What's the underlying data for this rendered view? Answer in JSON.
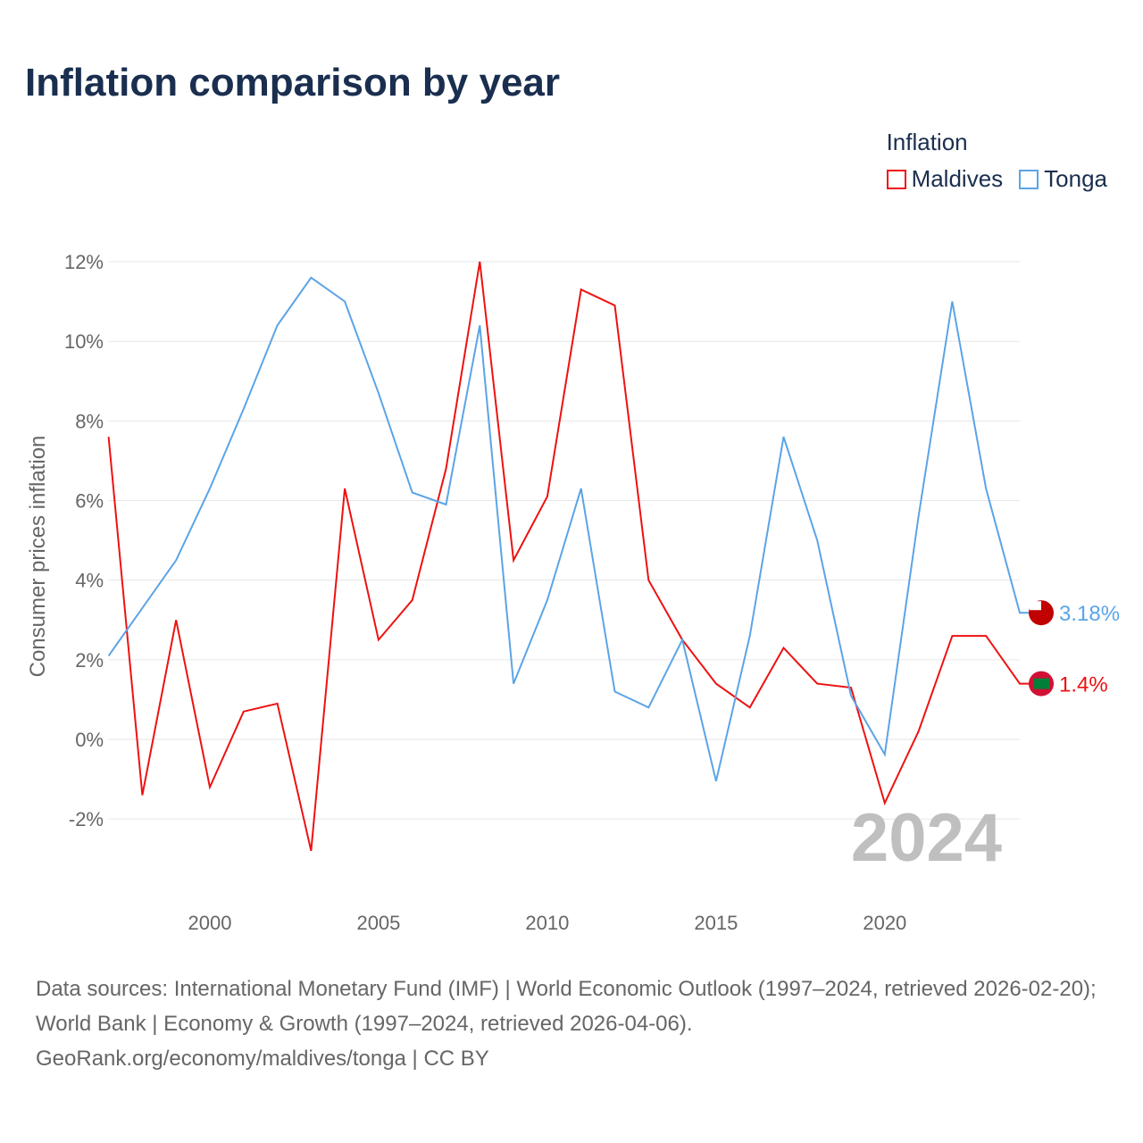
{
  "title": "Inflation comparison by year",
  "legend": {
    "title": "Inflation",
    "items": [
      {
        "name": "Maldives",
        "color": "#ee1111"
      },
      {
        "name": "Tonga",
        "color": "#5ba4e6"
      }
    ]
  },
  "year_label": "2024",
  "footer": {
    "sources": "Data sources: International Monetary Fund (IMF) | World Economic Outlook (1997–2024, retrieved 2026-02-20); World Bank | Economy & Growth (1997–2024, retrieved 2026-04-06).",
    "credit": "GeoRank.org/economy/maldives/tonga | CC BY"
  },
  "chart_data": {
    "type": "line",
    "title": "Inflation comparison by year",
    "xlabel": "",
    "ylabel": "Consumer prices inflation",
    "xlim": [
      1997,
      2024
    ],
    "ylim": [
      -3,
      12
    ],
    "x_ticks": [
      2000,
      2005,
      2010,
      2015,
      2020
    ],
    "y_ticks": [
      -2,
      0,
      2,
      4,
      6,
      8,
      10,
      12
    ],
    "y_tick_labels": [
      "-2%",
      "0%",
      "2%",
      "4%",
      "6%",
      "8%",
      "10%",
      "12%"
    ],
    "grid": true,
    "legend_position": "top-right",
    "x": [
      1997,
      1998,
      1999,
      2000,
      2001,
      2002,
      2003,
      2004,
      2005,
      2006,
      2007,
      2008,
      2009,
      2010,
      2011,
      2012,
      2013,
      2014,
      2015,
      2016,
      2017,
      2018,
      2019,
      2020,
      2021,
      2022,
      2023,
      2024
    ],
    "series": [
      {
        "name": "Maldives",
        "color": "#ee1111",
        "end_label": "1.4%",
        "values": [
          7.6,
          -1.4,
          3.0,
          -1.2,
          0.7,
          0.9,
          -2.8,
          6.3,
          2.5,
          3.5,
          6.8,
          12.0,
          4.5,
          6.1,
          11.3,
          10.9,
          4.0,
          2.5,
          1.4,
          0.8,
          2.3,
          1.4,
          1.3,
          -1.6,
          0.2,
          2.6,
          2.6,
          1.4
        ]
      },
      {
        "name": "Tonga",
        "color": "#5ba4e6",
        "end_label": "3.18%",
        "values": [
          2.1,
          3.3,
          4.5,
          6.3,
          8.3,
          10.4,
          11.6,
          11.0,
          8.7,
          6.2,
          5.9,
          10.4,
          1.4,
          3.5,
          6.3,
          1.2,
          0.8,
          2.5,
          -1.05,
          2.6,
          7.6,
          5.0,
          1.1,
          -0.38,
          5.6,
          11.0,
          6.3,
          3.18
        ]
      }
    ]
  }
}
